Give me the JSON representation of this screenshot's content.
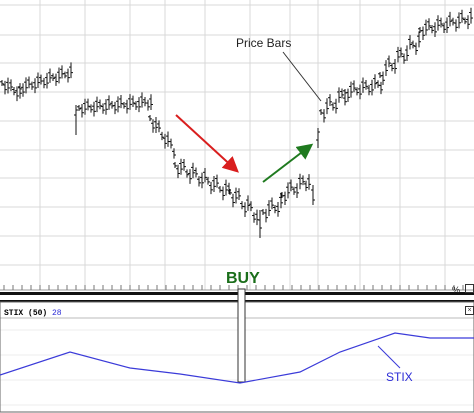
{
  "annotations": {
    "price_bars": "Price Bars",
    "buy": "BUY",
    "stix": "STIX"
  },
  "indicator": {
    "name": "STIX",
    "period": "(50)",
    "value": "28"
  },
  "scale_toggle": "%",
  "colors": {
    "price_bars": "#111111",
    "sell_arrow": "#d91e1e",
    "buy_arrow": "#1f7a1f",
    "stix_line": "#3b3bd9",
    "stix_label": "#2b2bd6",
    "grid": "#d8d8d8",
    "buy_text": "#1a6e1a"
  },
  "icons": {
    "close": "close-icon",
    "scale": "scale-toggle-icon"
  }
}
